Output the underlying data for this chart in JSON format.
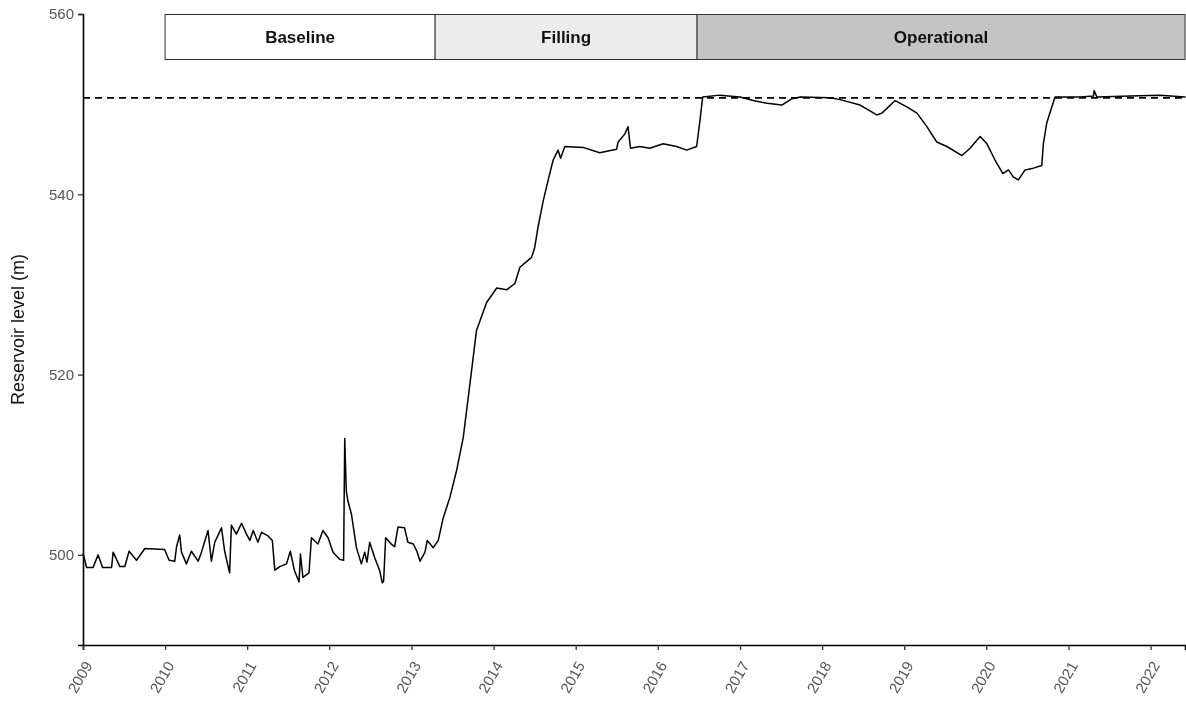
{
  "chart_data": {
    "type": "line",
    "ylabel": "Reservoir level (m)",
    "x": [
      "2009-01-02",
      "2009-01-17",
      "2009-02-15",
      "2009-03-09",
      "2009-03-29",
      "2009-05-08",
      "2009-05-15",
      "2009-06-14",
      "2009-07-06",
      "2009-07-25",
      "2009-08-27",
      "2009-10-03",
      "2009-12-30",
      "2010-01-19",
      "2010-02-13",
      "2010-02-21",
      "2010-03-07",
      "2010-03-15",
      "2010-04-06",
      "2010-04-28",
      "2010-05-28",
      "2010-06-12",
      "2010-07-11",
      "2010-07-26",
      "2010-08-10",
      "2010-09-09",
      "2010-09-23",
      "2010-10-15",
      "2010-10-23",
      "2010-11-14",
      "2010-12-07",
      "2010-12-29",
      "2011-01-13",
      "2011-01-28",
      "2011-02-18",
      "2011-03-06",
      "2011-04-04",
      "2011-04-23",
      "2011-05-04",
      "2011-05-26",
      "2011-06-25",
      "2011-07-12",
      "2011-07-31",
      "2011-08-20",
      "2011-08-26",
      "2011-09-06",
      "2011-10-03",
      "2011-10-14",
      "2011-11-12",
      "2011-12-04",
      "2011-12-27",
      "2012-01-18",
      "2012-02-16",
      "2012-03-05",
      "2012-03-10",
      "2012-03-17",
      "2012-03-24",
      "2012-04-09",
      "2012-05-01",
      "2012-05-23",
      "2012-06-07",
      "2012-06-17",
      "2012-06-29",
      "2012-07-21",
      "2012-08-13",
      "2012-08-24",
      "2012-08-30",
      "2012-09-08",
      "2012-10-03",
      "2012-10-18",
      "2012-11-02",
      "2012-12-01",
      "2012-12-16",
      "2013-01-09",
      "2013-01-25",
      "2013-02-08",
      "2013-03-02",
      "2013-03-12",
      "2013-04-08",
      "2013-04-30",
      "2013-05-22",
      "2013-06-21",
      "2013-07-20",
      "2013-08-19",
      "2013-09-18",
      "2013-10-17",
      "2013-12-01",
      "2014-01-15",
      "2014-02-28",
      "2014-04-06",
      "2014-04-28",
      "2014-06-19",
      "2014-07-03",
      "2014-07-18",
      "2014-08-10",
      "2014-09-01",
      "2014-09-23",
      "2014-10-15",
      "2014-10-26",
      "2014-11-14",
      "2015-02-03",
      "2015-04-18",
      "2015-07-02",
      "2015-07-09",
      "2015-08-08",
      "2015-08-22",
      "2015-09-02",
      "2015-10-13",
      "2015-11-27",
      "2016-01-25",
      "2016-03-25",
      "2016-05-09",
      "2016-06-22",
      "2016-07-07",
      "2016-07-19",
      "2016-10-04",
      "2017-01-01",
      "2017-03-01",
      "2017-05-01",
      "2017-07-06",
      "2017-08-20",
      "2017-09-26",
      "2018-02-06",
      "2018-03-22",
      "2018-06-19",
      "2018-09-01",
      "2018-09-24",
      "2018-11-22",
      "2019-01-13",
      "2019-02-27",
      "2019-04-12",
      "2019-05-26",
      "2019-07-10",
      "2019-09-15",
      "2019-10-21",
      "2019-12-05",
      "2020-01-04",
      "2020-02-09",
      "2020-03-15",
      "2020-04-09",
      "2020-05-01",
      "2020-05-23",
      "2020-06-22",
      "2020-07-29",
      "2020-09-04",
      "2020-09-11",
      "2020-09-26",
      "2020-10-19",
      "2020-11-02",
      "2021-02-22",
      "2021-04-22",
      "2021-04-25",
      "2021-05-07",
      "2021-10-02",
      "2022-02-12",
      "2022-06-03"
    ],
    "values": [
      500.1,
      498.6,
      498.6,
      500.0,
      498.6,
      498.6,
      500.3,
      498.7,
      498.7,
      500.4,
      499.4,
      500.7,
      500.6,
      499.4,
      499.3,
      500.9,
      502.2,
      500.3,
      499.0,
      500.4,
      499.3,
      500.3,
      502.7,
      499.3,
      501.4,
      503.0,
      500.4,
      498.0,
      503.3,
      502.3,
      503.5,
      502.3,
      501.6,
      502.7,
      501.4,
      502.5,
      502.1,
      501.6,
      498.3,
      498.7,
      499.0,
      500.4,
      498.2,
      497.0,
      500.1,
      497.5,
      498.0,
      501.9,
      501.2,
      502.7,
      501.9,
      500.3,
      499.5,
      499.4,
      512.9,
      507.1,
      506.0,
      504.5,
      500.8,
      499.0,
      500.3,
      499.2,
      501.4,
      499.7,
      498.2,
      496.9,
      497.1,
      501.9,
      501.2,
      500.9,
      503.1,
      503.0,
      501.4,
      501.2,
      500.4,
      499.3,
      500.3,
      501.6,
      500.8,
      501.6,
      504.1,
      506.4,
      509.3,
      513.0,
      519.0,
      524.9,
      528.0,
      529.6,
      529.4,
      530.1,
      531.9,
      533.0,
      534.1,
      536.4,
      539.3,
      541.6,
      543.8,
      544.9,
      544.0,
      545.3,
      545.2,
      544.6,
      545.0,
      545.8,
      546.7,
      547.5,
      545.1,
      545.3,
      545.1,
      545.6,
      545.3,
      544.9,
      545.3,
      548.2,
      550.8,
      551.0,
      550.8,
      550.4,
      550.1,
      549.9,
      550.6,
      550.8,
      550.7,
      550.5,
      549.9,
      548.8,
      549.0,
      550.4,
      549.7,
      549.0,
      547.5,
      545.8,
      545.3,
      544.3,
      545.1,
      546.4,
      545.6,
      543.8,
      542.3,
      542.7,
      541.9,
      541.6,
      542.7,
      542.9,
      543.2,
      545.6,
      547.9,
      549.7,
      550.8,
      550.8,
      550.9,
      551.5,
      550.8,
      550.9,
      551.0,
      550.8
    ],
    "color": "#000000",
    "xlim": [
      "2009-01-01",
      "2022-06-03"
    ],
    "xticks": [
      "2009",
      "2010",
      "2011",
      "2012",
      "2013",
      "2014",
      "2015",
      "2016",
      "2017",
      "2018",
      "2019",
      "2020",
      "2021",
      "2022"
    ],
    "ylim": [
      490,
      560
    ],
    "yticks": [
      500,
      520,
      540,
      560
    ],
    "ref_lines": [
      {
        "axis": "y",
        "value": 550.7,
        "color": "#000000",
        "line_style": "dashed"
      }
    ],
    "bands": [
      {
        "axis": "x",
        "from": "2010-01-01",
        "to": "2013-04-16",
        "label": "Baseline",
        "color": "#ffffff"
      },
      {
        "axis": "x",
        "from": "2013-04-16",
        "to": "2016-06-24",
        "label": "Filling",
        "color": "#ececec"
      },
      {
        "axis": "x",
        "from": "2016-06-24",
        "to": "2022-06-03",
        "label": "Operational",
        "color": "#c4c4c4"
      }
    ]
  }
}
